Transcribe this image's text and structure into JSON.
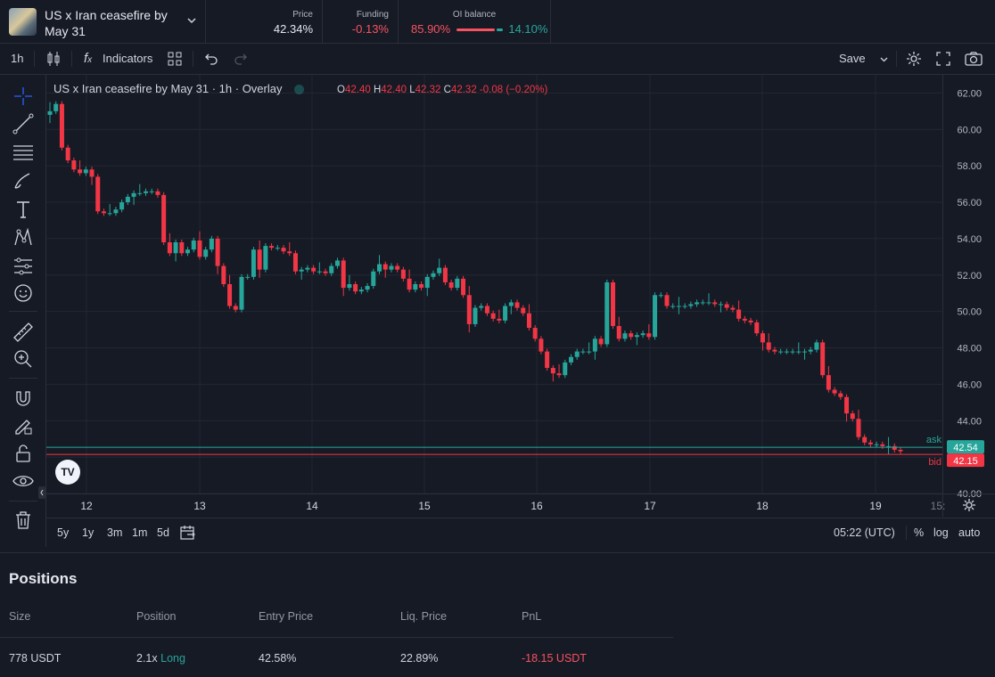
{
  "market": {
    "title": "US x Iran ceasefire by May 31"
  },
  "stats": {
    "price": {
      "label": "Price",
      "value": "42.34%"
    },
    "funding": {
      "label": "Funding",
      "value": "-0.13%"
    },
    "oi": {
      "label": "OI balance",
      "long": "85.90%",
      "short": "14.10%",
      "long_fraction": 0.859
    }
  },
  "toolbar": {
    "interval": "1h",
    "indicators": "Indicators",
    "save": "Save"
  },
  "legend": {
    "title": "US x Iran ceasefire by May 31 · 1h · Overlay",
    "o": "42.40",
    "h": "42.40",
    "l": "42.32",
    "c": "42.32",
    "change": "-0.08 (−0.20%)"
  },
  "chart_data": {
    "type": "candlestick",
    "ylim": [
      40,
      63
    ],
    "y_ticks": [
      "62.00",
      "60.00",
      "58.00",
      "56.00",
      "54.00",
      "52.00",
      "50.00",
      "48.00",
      "46.00",
      "44.00",
      "42.00",
      "40.00"
    ],
    "x_ticks": [
      "12",
      "13",
      "14",
      "15",
      "16",
      "17",
      "18",
      "19",
      "15:"
    ],
    "ask": {
      "label": "ask",
      "value": 42.54,
      "text": "42.54"
    },
    "bid": {
      "label": "bid",
      "value": 42.15,
      "text": "42.15"
    },
    "closes": [
      61,
      61.4,
      59,
      58.3,
      57.8,
      57.6,
      57.8,
      57.4,
      55.5,
      55.4,
      55.4,
      55.6,
      56,
      56.3,
      56.5,
      56.5,
      56.6,
      56.6,
      56.4,
      53.8,
      53.2,
      53.8,
      53.2,
      53.4,
      53.9,
      53.0,
      53.4,
      54.0,
      52.5,
      51.5,
      50.3,
      50.1,
      51.9,
      51.9,
      53.4,
      52.3,
      53.6,
      53.5,
      53.5,
      53.3,
      53.2,
      52.2,
      52.3,
      52.4,
      52.2,
      52.2,
      52.1,
      52.5,
      52.8,
      51.3,
      51.5,
      51.1,
      51.2,
      51.4,
      52.2,
      52.6,
      52.3,
      52.5,
      52.3,
      51.8,
      51.2,
      51.5,
      51.3,
      51.9,
      52.1,
      52.4,
      51.6,
      51.3,
      51.8,
      50.9,
      49.3,
      50.2,
      50.3,
      49.9,
      49.6,
      49.5,
      50.3,
      50.5,
      50.2,
      49.9,
      49.1,
      48.5,
      47.8,
      46.9,
      46.6,
      46.5,
      47.2,
      47.5,
      47.8,
      47.8,
      47.8,
      48.5,
      48.2,
      51.6,
      49.2,
      48.5,
      48.8,
      48.6,
      48.7,
      48.8,
      48.6,
      50.9,
      50.9,
      50.3,
      50.3,
      50.3,
      50.3,
      50.4,
      50.5,
      50.5,
      50.5,
      50.4,
      50.4,
      50.2,
      50.1,
      49.6,
      49.5,
      49.4,
      48.8,
      48.3,
      47.9,
      47.8,
      47.8,
      47.8,
      47.8,
      47.8,
      47.8,
      47.9,
      48.3,
      46.5,
      45.7,
      45.5,
      45.3,
      44.4,
      44.1,
      43.1,
      42.8,
      42.7,
      42.7,
      42.6,
      42.6,
      42.4,
      42.32
    ]
  },
  "bottombar": {
    "ranges": [
      "5y",
      "1y",
      "3m",
      "1m",
      "5d"
    ],
    "time": "05:22 (UTC)",
    "percent": "%",
    "log": "log",
    "auto": "auto"
  },
  "positions": {
    "title": "Positions",
    "headers": [
      "Size",
      "Position",
      "Entry Price",
      "Liq. Price",
      "PnL"
    ],
    "row": {
      "size": "778 USDT",
      "leverage": "2.1x",
      "side": "Long",
      "entry": "42.58%",
      "liq": "22.89%",
      "pnl": "-18.15 USDT"
    }
  },
  "colors": {
    "up": "#26a69a",
    "down": "#f23645",
    "bg": "#161a25",
    "grid": "#232733"
  }
}
